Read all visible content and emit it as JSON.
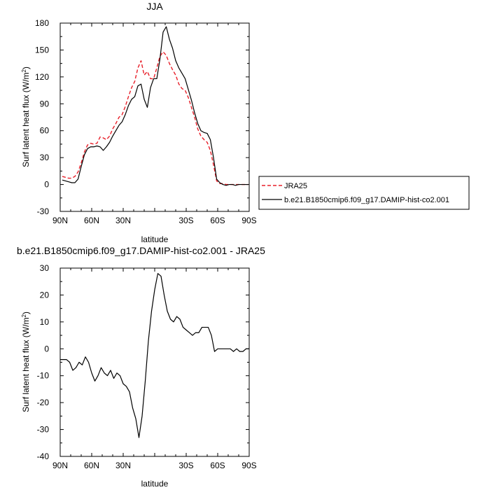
{
  "chart_data": [
    {
      "type": "line",
      "title": "JJA",
      "xlabel": "latitude",
      "ylabel": "Surf latent heat flux (W/m",
      "ylabel_sup": "2",
      "ylabel_tail": ")",
      "xlim": [
        90,
        -90
      ],
      "ylim": [
        -30,
        180
      ],
      "x_ticks": [
        90,
        60,
        30,
        0,
        -30,
        -60,
        -90
      ],
      "x_tick_labels": [
        "90N",
        "60N",
        "30N",
        "",
        "30S",
        "60S",
        "90S"
      ],
      "y_ticks": [
        -30,
        0,
        30,
        60,
        90,
        120,
        150,
        180
      ],
      "y_tick_labels": [
        "-30",
        "0",
        "30",
        "60",
        "90",
        "120",
        "150",
        "180"
      ],
      "grid": false,
      "legend_position": "right",
      "series": [
        {
          "name": "JRA25",
          "color": "#e8202a",
          "dash": "dashed",
          "x": [
            88,
            85,
            82,
            79,
            76,
            73,
            70,
            67,
            64,
            61,
            58,
            55,
            52,
            49,
            46,
            43,
            40,
            37,
            34,
            31,
            28,
            25,
            22,
            19,
            16,
            13,
            10,
            7,
            4,
            1,
            -2,
            -5,
            -8,
            -11,
            -14,
            -17,
            -20,
            -23,
            -26,
            -29,
            -32,
            -35,
            -38,
            -41,
            -44,
            -47,
            -50,
            -53,
            -56,
            -59,
            -62,
            -65,
            -68,
            -71,
            -74,
            -77,
            -80,
            -83,
            -86,
            -89
          ],
          "y": [
            9,
            8,
            7,
            7,
            9,
            14,
            24,
            36,
            44,
            46,
            45,
            46,
            53,
            52,
            50,
            54,
            62,
            68,
            75,
            78,
            87,
            98,
            108,
            115,
            130,
            138,
            122,
            126,
            118,
            118,
            130,
            143,
            148,
            144,
            135,
            128,
            122,
            112,
            107,
            105,
            97,
            86,
            75,
            62,
            54,
            50,
            47,
            38,
            22,
            4,
            1,
            1,
            0,
            0,
            0,
            0,
            0,
            0,
            0,
            0
          ]
        },
        {
          "name": "b.e21.B1850cmip6.f09_g17.DAMIP-hist-co2.001",
          "color": "#000000",
          "dash": "solid",
          "x": [
            88,
            85,
            82,
            79,
            76,
            73,
            70,
            67,
            64,
            61,
            58,
            55,
            52,
            49,
            46,
            43,
            40,
            37,
            34,
            31,
            28,
            25,
            22,
            19,
            16,
            13,
            10,
            7,
            4,
            1,
            -2,
            -5,
            -8,
            -11,
            -14,
            -17,
            -20,
            -23,
            -26,
            -29,
            -32,
            -35,
            -38,
            -41,
            -44,
            -47,
            -50,
            -53,
            -56,
            -59,
            -62,
            -65,
            -68,
            -71,
            -74,
            -77,
            -80,
            -83,
            -86,
            -89
          ],
          "y": [
            5,
            4,
            3,
            2,
            2,
            6,
            20,
            33,
            40,
            42,
            42,
            43,
            42,
            38,
            42,
            47,
            54,
            60,
            66,
            70,
            78,
            88,
            95,
            98,
            110,
            112,
            95,
            86,
            108,
            118,
            118,
            140,
            170,
            176,
            162,
            152,
            138,
            130,
            124,
            118,
            106,
            94,
            80,
            68,
            60,
            58,
            57,
            50,
            30,
            6,
            2,
            0,
            -1,
            0,
            0,
            -1,
            0,
            0,
            0,
            0
          ]
        }
      ]
    },
    {
      "type": "line",
      "title": "b.e21.B1850cmip6.f09_g17.DAMIP-hist-co2.001 - JRA25",
      "xlabel": "latitude",
      "ylabel": "Surf latent heat flux (W/m",
      "ylabel_sup": "2",
      "ylabel_tail": ")",
      "xlim": [
        90,
        -90
      ],
      "ylim": [
        -40,
        30
      ],
      "x_ticks": [
        90,
        60,
        30,
        0,
        -30,
        -60,
        -90
      ],
      "x_tick_labels": [
        "90N",
        "60N",
        "30N",
        "",
        "30S",
        "60S",
        "90S"
      ],
      "y_ticks": [
        -40,
        -30,
        -20,
        -10,
        0,
        10,
        20,
        30
      ],
      "y_tick_labels": [
        "-40",
        "-30",
        "-20",
        "-10",
        "0",
        "10",
        "20",
        "30"
      ],
      "grid": false,
      "series": [
        {
          "color": "#000000",
          "dash": "solid",
          "x": [
            90,
            87,
            84,
            81,
            78,
            75,
            72,
            69,
            66,
            63,
            60,
            57,
            54,
            51,
            48,
            45,
            42,
            39,
            36,
            33,
            30,
            27,
            24,
            21,
            18,
            15,
            12,
            9,
            6,
            3,
            0,
            -3,
            -6,
            -9,
            -12,
            -15,
            -18,
            -21,
            -24,
            -27,
            -30,
            -33,
            -36,
            -39,
            -42,
            -45,
            -48,
            -51,
            -54,
            -57,
            -60,
            -63,
            -66,
            -69,
            -72,
            -75,
            -78,
            -81,
            -84,
            -87,
            -90
          ],
          "y": [
            -4,
            -4,
            -4,
            -5,
            -8,
            -7,
            -5,
            -6,
            -3,
            -5,
            -9,
            -12,
            -10,
            -7,
            -9,
            -10,
            -8,
            -11,
            -9,
            -10,
            -13,
            -14,
            -16,
            -22,
            -26,
            -33,
            -25,
            -12,
            3,
            14,
            22,
            28,
            27,
            20,
            14,
            11,
            10,
            12,
            11,
            8,
            7,
            6,
            5,
            6,
            6,
            8,
            8,
            8,
            5,
            -1,
            0,
            0,
            0,
            0,
            0,
            -1,
            0,
            -1,
            -1,
            0,
            0
          ]
        }
      ]
    }
  ]
}
